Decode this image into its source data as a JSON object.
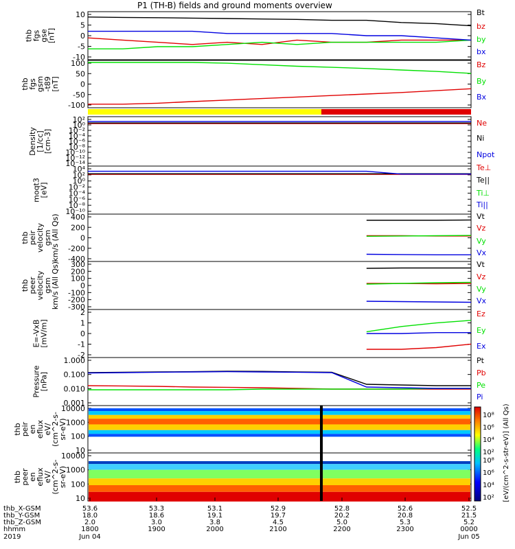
{
  "title": "P1 (TH-B) fields and ground moments overview",
  "colors": {
    "black": "#000000",
    "red": "#e00000",
    "green": "#00e000",
    "blue": "#0000e0"
  },
  "chart_data": [
    {
      "type": "line",
      "id": "fgs-gse",
      "ylabel": [
        "thb",
        "fgs",
        "gse",
        "[nT]"
      ],
      "yticks": [
        "10",
        "5",
        "0",
        "-5",
        "-10"
      ],
      "ylim": [
        -10,
        10
      ],
      "legend": [
        "Bt",
        "bz",
        "by",
        "bx"
      ],
      "series": [
        {
          "name": "Bt",
          "color": "black",
          "values": [
            8.5,
            8.3,
            8.2,
            8,
            7.8,
            7.6,
            7.4,
            7,
            7,
            6,
            5.5,
            4.5
          ]
        },
        {
          "name": "bz",
          "color": "red",
          "values": [
            -1,
            -2,
            -3,
            -4,
            -3,
            -4,
            -2,
            -3,
            -3,
            -2,
            -2,
            -2
          ]
        },
        {
          "name": "by",
          "color": "green",
          "values": [
            -6,
            -6,
            -5,
            -5,
            -4,
            -3,
            -4,
            -3,
            -3,
            -3,
            -3,
            -2
          ]
        },
        {
          "name": "bx",
          "color": "blue",
          "values": [
            2,
            2,
            2,
            2,
            1,
            1,
            1,
            1,
            0,
            0,
            -1,
            -2
          ]
        }
      ]
    },
    {
      "type": "line",
      "id": "fgs-gsm",
      "ylabel": [
        "thb",
        "fgs",
        "gsm",
        "-t89",
        "[nT]"
      ],
      "yticks": [
        "100",
        "50",
        "0",
        "-50",
        "-100"
      ],
      "ylim": [
        -130,
        100
      ],
      "legend": [
        "Bz",
        "By",
        "Bx"
      ],
      "series": [
        {
          "name": "Bz",
          "color": "red",
          "values": [
            -122,
            -122,
            -117,
            -108,
            -100,
            -92,
            -84,
            -76,
            -68,
            -60,
            -50,
            -40
          ]
        },
        {
          "name": "By",
          "color": "green",
          "values": [
            100,
            100,
            100,
            100,
            96,
            88,
            80,
            74,
            68,
            60,
            52,
            42
          ]
        },
        {
          "name": "Bx",
          "color": "blue",
          "values": []
        }
      ]
    },
    {
      "type": "line",
      "id": "density",
      "log": true,
      "ylabel": [
        "Density",
        "[1/cc]",
        "[cm-3]"
      ],
      "yticks": [
        "10²",
        "10⁰",
        "10⁻²",
        "10⁻⁴",
        "10⁻⁶",
        "10⁻⁸",
        "10⁻¹⁰",
        "10⁻¹²",
        "10⁻¹⁴"
      ],
      "ylim": [
        -14,
        2
      ],
      "legend": [
        "Ne",
        "Ni",
        "Npot"
      ],
      "series": [
        {
          "name": "Ne",
          "color": "red",
          "values": [
            0.3,
            0.3,
            0.3,
            0.3,
            0.3,
            0.3,
            0.3,
            0.3,
            0.3,
            0.3,
            0.3,
            0.3
          ]
        },
        {
          "name": "Ni",
          "color": "black",
          "values": [
            0.5,
            0.5,
            0.5,
            0.5,
            0.5,
            0.5,
            0.5,
            0.5,
            0.5,
            0.5,
            0.5,
            0.5
          ]
        },
        {
          "name": "Npot",
          "color": "blue",
          "values": [
            1,
            1,
            1,
            1,
            1,
            1,
            1,
            1,
            1,
            1,
            1,
            1
          ]
        }
      ]
    },
    {
      "type": "line",
      "id": "temperature",
      "log": true,
      "ylabel": [
        "moqt3",
        "[eV]"
      ],
      "yticks": [
        "10⁴",
        "10²",
        "10⁰",
        "10⁻²",
        "10⁻⁴",
        "10⁻⁶",
        "10⁻⁸",
        "10⁻¹⁰"
      ],
      "ylim": [
        -10,
        4
      ],
      "legend": [
        "Te⊥",
        "Te||",
        "Ti⊥",
        "Ti||"
      ],
      "series": [
        {
          "name": "Te⊥",
          "color": "red",
          "values": [
            2,
            2,
            2,
            2,
            2,
            2,
            2,
            2,
            2,
            2,
            2,
            2
          ]
        },
        {
          "name": "Te||",
          "color": "black",
          "values": [
            2.2,
            2.2,
            2.2,
            2.2,
            2.2,
            2.2,
            2.2,
            2.2,
            2.2,
            2.2,
            2.2,
            2.2
          ]
        },
        {
          "name": "Ti⊥",
          "color": "green",
          "values": []
        },
        {
          "name": "Ti||",
          "color": "blue",
          "values": [
            3,
            3,
            3,
            3,
            3,
            3,
            3,
            3,
            3,
            2.1,
            2.1,
            2.1
          ]
        }
      ]
    },
    {
      "type": "line",
      "id": "peir-velocity",
      "ylabel": [
        "thb",
        "peir",
        "velocity",
        "gsm",
        "km/s (All Qs)"
      ],
      "yticks": [
        "400",
        "200",
        "0",
        "-200",
        "-400"
      ],
      "ylim": [
        -420,
        420
      ],
      "legend": [
        "Vt",
        "Vz",
        "Vy",
        "Vx"
      ],
      "series": [
        {
          "name": "Vt",
          "color": "black",
          "values": [
            null,
            null,
            null,
            null,
            null,
            null,
            null,
            null,
            340,
            340,
            340,
            345
          ]
        },
        {
          "name": "Vz",
          "color": "red",
          "values": [
            null,
            null,
            null,
            null,
            null,
            null,
            null,
            null,
            40,
            40,
            35,
            35
          ]
        },
        {
          "name": "Vy",
          "color": "green",
          "values": [
            null,
            null,
            null,
            null,
            null,
            null,
            null,
            null,
            30,
            35,
            40,
            45
          ]
        },
        {
          "name": "Vx",
          "color": "blue",
          "values": [
            null,
            null,
            null,
            null,
            null,
            null,
            null,
            null,
            -320,
            -325,
            -330,
            -330
          ]
        }
      ]
    },
    {
      "type": "line",
      "id": "peer-velocity",
      "ylabel": [
        "thb",
        "peer",
        "velocity",
        "gsm",
        "km/s (All Qs)"
      ],
      "yticks": [
        "300",
        "200",
        "100",
        "0",
        "-100",
        "-200",
        "-300"
      ],
      "ylim": [
        -320,
        320
      ],
      "legend": [
        "Vt",
        "Vz",
        "Vy",
        "Vx"
      ],
      "series": [
        {
          "name": "Vt",
          "color": "black",
          "values": [
            null,
            null,
            null,
            null,
            null,
            null,
            null,
            null,
            250,
            255,
            255,
            255
          ]
        },
        {
          "name": "Vz",
          "color": "red",
          "values": [
            null,
            null,
            null,
            null,
            null,
            null,
            null,
            null,
            30,
            30,
            25,
            30
          ]
        },
        {
          "name": "Vy",
          "color": "green",
          "values": [
            null,
            null,
            null,
            null,
            null,
            null,
            null,
            null,
            20,
            30,
            40,
            45
          ]
        },
        {
          "name": "Vx",
          "color": "blue",
          "values": [
            null,
            null,
            null,
            null,
            null,
            null,
            null,
            null,
            -230,
            -235,
            -240,
            -245
          ]
        }
      ]
    },
    {
      "type": "line",
      "id": "efield",
      "ylabel": [
        "E=-VxB",
        "[mV/m]"
      ],
      "yticks": [
        "2",
        "1",
        "0",
        "-1",
        "-2"
      ],
      "ylim": [
        -2.5,
        2.5
      ],
      "legend": [
        "Ez",
        "Ey",
        "Ex"
      ],
      "series": [
        {
          "name": "Ez",
          "color": "red",
          "values": [
            null,
            null,
            null,
            null,
            null,
            null,
            null,
            null,
            -1.8,
            -1.8,
            -1.6,
            -1.2
          ]
        },
        {
          "name": "Ey",
          "color": "green",
          "values": [
            null,
            null,
            null,
            null,
            null,
            null,
            null,
            null,
            0.2,
            0.8,
            1.2,
            1.5
          ]
        },
        {
          "name": "Ex",
          "color": "blue",
          "values": [
            null,
            null,
            null,
            null,
            null,
            null,
            null,
            null,
            0,
            0,
            0.1,
            0.1
          ]
        }
      ]
    },
    {
      "type": "line",
      "id": "pressure",
      "log": true,
      "ylabel": [
        "Pressure",
        "[nPa]"
      ],
      "yticks": [
        "1.000",
        "0.100",
        "0.010",
        "0.001"
      ],
      "ylim": [
        -3,
        0.2
      ],
      "legend": [
        "Pt",
        "Pb",
        "Pe",
        "Pi"
      ],
      "series": [
        {
          "name": "Pt",
          "color": "black",
          "values": [
            -0.75,
            -0.72,
            -0.7,
            -0.68,
            -0.65,
            -0.66,
            -0.7,
            -0.72,
            -1.6,
            -1.65,
            -1.7,
            -1.7
          ]
        },
        {
          "name": "Pb",
          "color": "red",
          "values": [
            -1.7,
            -1.72,
            -1.75,
            -1.8,
            -1.82,
            -1.85,
            -1.9,
            -1.95,
            -1.95,
            -1.95,
            -1.95,
            -1.95
          ]
        },
        {
          "name": "Pe",
          "color": "green",
          "values": [
            -2,
            -2,
            -2,
            -2,
            -2,
            -1.95,
            -1.95,
            -1.95,
            -1.95,
            -1.95,
            -1.9,
            -1.9
          ]
        },
        {
          "name": "Pi",
          "color": "blue",
          "values": [
            -0.78,
            -0.75,
            -0.72,
            -0.7,
            -0.68,
            -0.7,
            -0.72,
            -0.75,
            -1.8,
            -1.85,
            -1.9,
            -1.9
          ]
        }
      ]
    },
    {
      "type": "heatmap",
      "id": "peir-spec",
      "ylabel": [
        "thb",
        "peir",
        "en",
        "eflux",
        "eV/",
        "(cm^2-s-",
        "sr-eV)"
      ],
      "yticks": [
        "10000",
        "1000",
        "100",
        "10"
      ]
    },
    {
      "type": "heatmap",
      "id": "peer-spec",
      "ylabel": [
        "thb",
        "peer",
        "en",
        "eflux",
        "eV/",
        "(cm^2-s-",
        "sr-eV)"
      ],
      "yticks": [
        "10000",
        "1000",
        "100",
        "10"
      ]
    }
  ],
  "colorbar": {
    "label": "[eV/(cm^2-s-str-eV)] (All Qs)",
    "ticks": [
      "10⁸",
      "10⁶",
      "10⁴",
      "10²"
    ],
    "ticks2": [
      "10⁸",
      "10⁶",
      "10⁴",
      "10²"
    ]
  },
  "xaxis": {
    "rows": [
      {
        "label": "thb_X-GSM",
        "values": [
          "53.6",
          "53.3",
          "53.1",
          "52.9",
          "52.8",
          "52.6",
          "52.5"
        ]
      },
      {
        "label": "thb_Y-GSM",
        "values": [
          "18.0",
          "18.6",
          "19.1",
          "19.7",
          "20.2",
          "20.8",
          "21.5"
        ]
      },
      {
        "label": "thb_Z-GSM",
        "values": [
          "2.0",
          "3.0",
          "3.8",
          "4.5",
          "5.0",
          "5.3",
          "5.2"
        ]
      },
      {
        "label": "hhmm",
        "values": [
          "1800",
          "1900",
          "2000",
          "2100",
          "2200",
          "2300",
          "0000"
        ]
      }
    ],
    "year": "2019",
    "dates": [
      "Jun 04",
      "Jun 05"
    ]
  }
}
